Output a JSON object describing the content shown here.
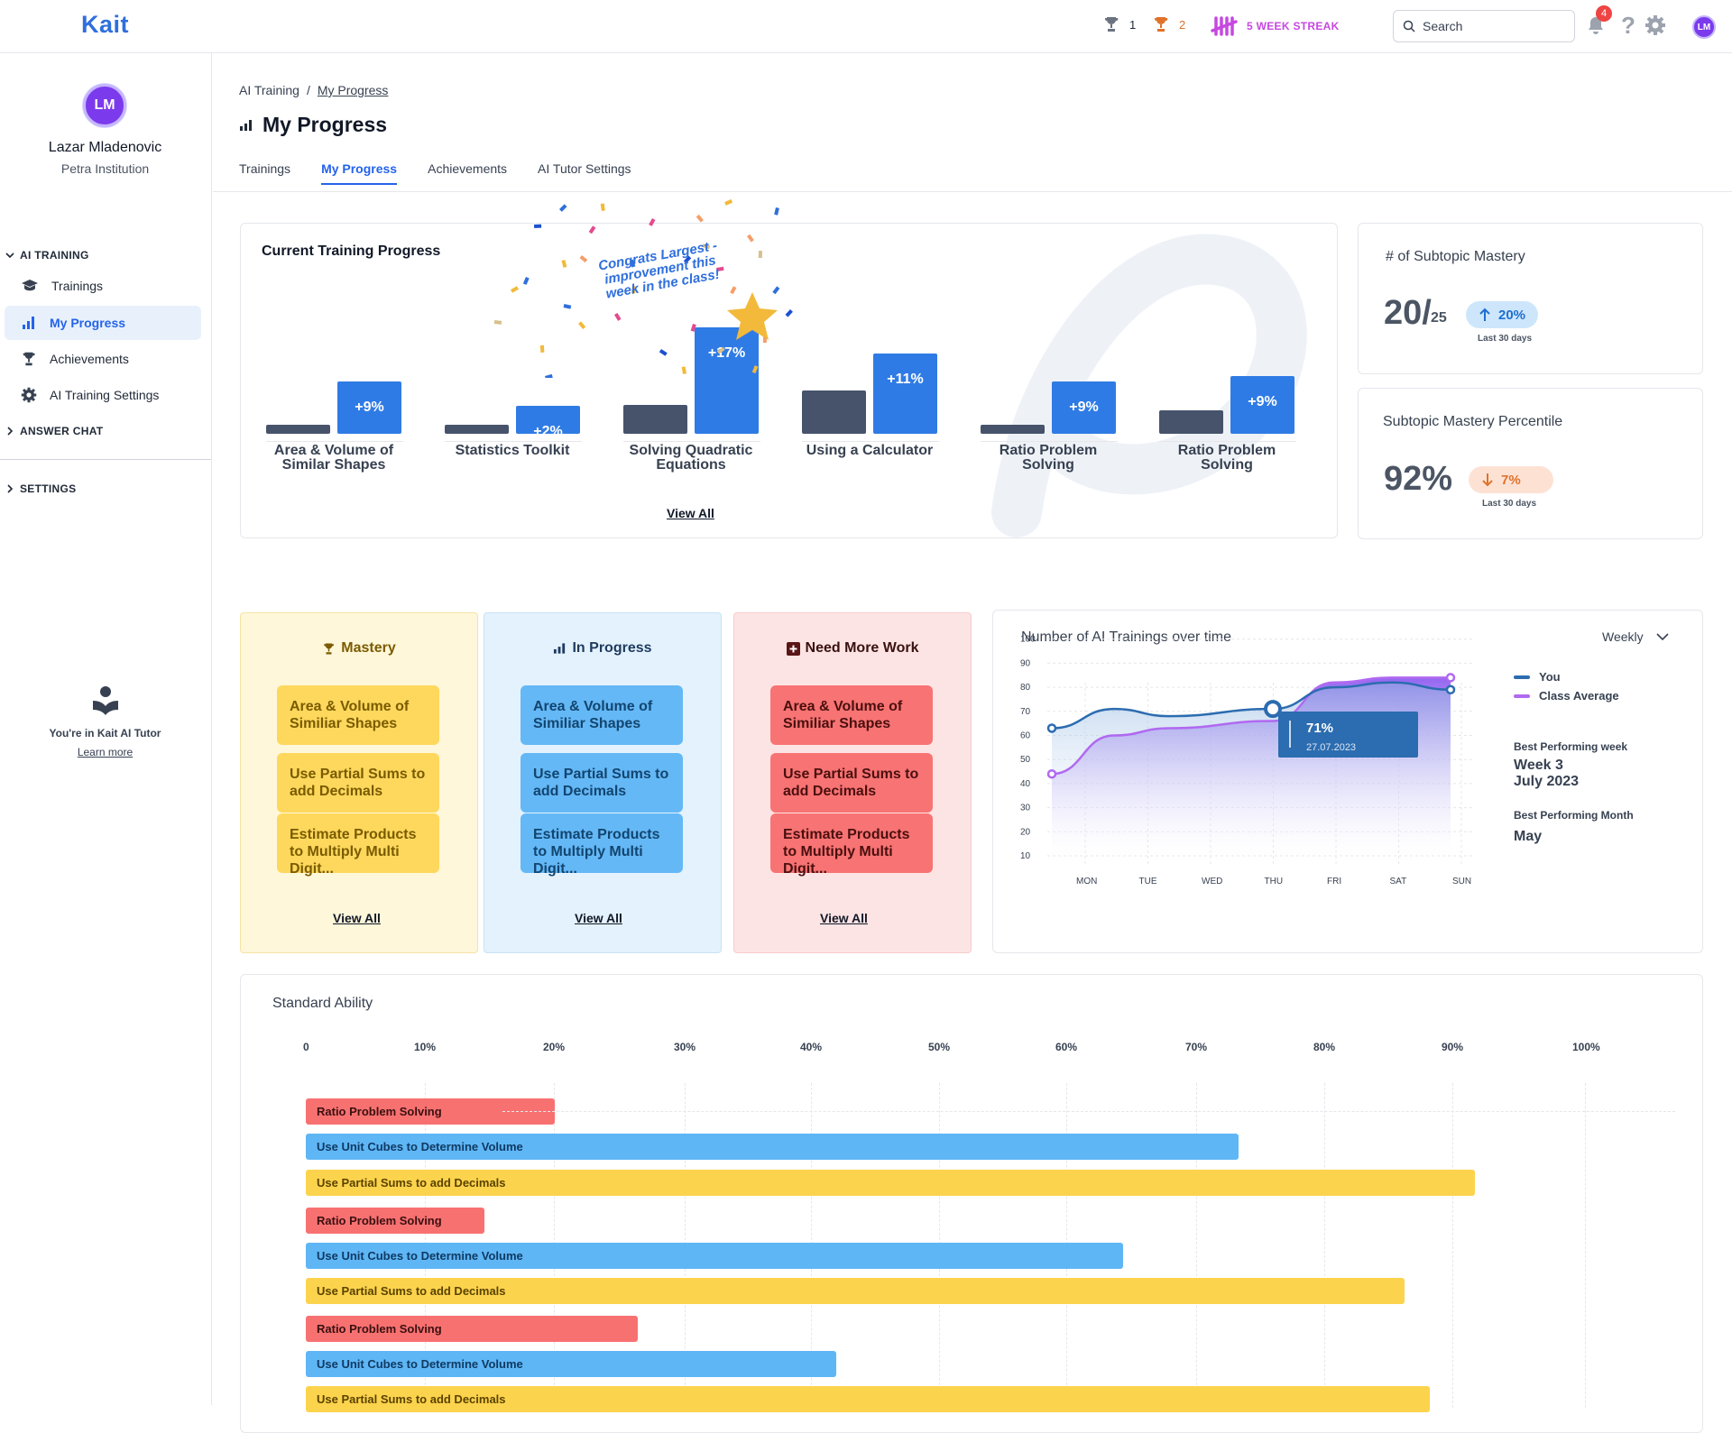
{
  "topbar": {
    "logo": "Kait",
    "trophy_silver_count": "1",
    "trophy_orange_count": "2",
    "streak_label": "5 WEEK STREAK",
    "search_placeholder": "Search",
    "notification_count": "4",
    "avatar_initials": "LM",
    "colors": {
      "brand": "#2f6fdc",
      "streak": "#c648e0",
      "orange": "#e0722b"
    }
  },
  "sidebar": {
    "avatar_initials": "LM",
    "user_name": "Lazar Mladenovic",
    "institution": "Petra Institution",
    "sections": {
      "ai_training": "AI TRAINING",
      "answer_chat": "ANSWER CHAT",
      "settings": "SETTINGS"
    },
    "items": [
      {
        "label": "Trainings",
        "icon": "graduation-cap-icon"
      },
      {
        "label": "My Progress",
        "icon": "bar-chart-icon"
      },
      {
        "label": "Achievements",
        "icon": "trophy-icon"
      },
      {
        "label": "AI Training Settings",
        "icon": "gear-icon"
      }
    ],
    "note_text": "You're in Kait AI Tutor",
    "note_link": "Learn more"
  },
  "header": {
    "breadcrumb": [
      "AI Training",
      "/",
      "My Progress"
    ],
    "title": "My Progress",
    "tabs": [
      "Trainings",
      "My Progress",
      "Achievements",
      "AI Tutor Settings"
    ]
  },
  "training_progress": {
    "title": "Current Training Progress",
    "congrats": "Congrats Largest - improvement this week in the class!",
    "view_all": "View All",
    "items": [
      {
        "label": "Area & Volume of Similar Shapes",
        "previous": 0.08,
        "gain": "+9%",
        "current": 0.48
      },
      {
        "label": "Statistics Toolkit",
        "previous": 0.08,
        "gain": "+2%",
        "current": 0.26
      },
      {
        "label": "Solving Quadratic Equations",
        "previous": 0.27,
        "gain": "+17%",
        "current": 0.98
      },
      {
        "label": "Using a Calculator",
        "previous": 0.4,
        "gain": "+11%",
        "current": 0.74
      },
      {
        "label": "Ratio Problem Solving",
        "previous": 0.08,
        "gain": "+9%",
        "current": 0.48
      },
      {
        "label": "Ratio Problem Solving",
        "previous": 0.22,
        "gain": "+9%",
        "current": 0.53
      }
    ]
  },
  "subtopic_mastery": {
    "title": "# of Subtopic Mastery",
    "value": "20/",
    "total": "25",
    "change": "20%",
    "period": "Last 30 days"
  },
  "mastery_percentile": {
    "title": "Subtopic Mastery Percentile",
    "value": "92%",
    "change": "7%",
    "period": "Last 30 days"
  },
  "columns": [
    {
      "title": "Mastery",
      "icon": "trophy-icon",
      "items": [
        "Area & Volume of Similiar Shapes",
        "Use Partial Sums to add Decimals",
        "Estimate Products to Multiply Multi Digit..."
      ],
      "view_all": "View All"
    },
    {
      "title": "In Progress",
      "icon": "bar-chart-icon",
      "items": [
        "Area & Volume of Similiar Shapes",
        "Use Partial Sums to add Decimals",
        "Estimate Products to Multiply Multi Digit..."
      ],
      "view_all": "View All"
    },
    {
      "title": "Need More Work",
      "icon": "plus-square-icon",
      "items": [
        "Area & Volume of Similiar Shapes",
        "Use Partial Sums to add Decimals",
        "Estimate Products to Multiply Multi Digit..."
      ],
      "view_all": "View All"
    }
  ],
  "trainings_chart": {
    "title": "Number of AI Trainings over time",
    "period": "Weekly",
    "tooltip_value": "71%",
    "tooltip_date": "27.07.2023",
    "best_week_label": "Best Performing week",
    "best_week_value": "Week 3",
    "best_week_value2": "July 2023",
    "best_month_label": "Best Performing Month",
    "best_month_value": "May"
  },
  "chart_data": [
    {
      "type": "area",
      "title": "Number of AI Trainings over time",
      "categories": [
        "MON",
        "TUE",
        "WED",
        "THU",
        "FRI",
        "SAT",
        "SUN"
      ],
      "ylim": [
        10,
        100
      ],
      "yticks": [
        10,
        20,
        30,
        40,
        50,
        60,
        70,
        80,
        90,
        100
      ],
      "series": [
        {
          "name": "You",
          "color": "#2c6cb0",
          "values": [
            63,
            71,
            68,
            71,
            80,
            82,
            79
          ]
        },
        {
          "name": "Class Average",
          "color": "#b069f0",
          "values": [
            44,
            60,
            63,
            66,
            82,
            84,
            84
          ]
        }
      ]
    },
    {
      "type": "bar",
      "orientation": "horizontal",
      "title": "Standard Ability",
      "xlim": [
        0,
        100
      ],
      "xticks": [
        "0",
        "10%",
        "20%",
        "30%",
        "40%",
        "50%",
        "60%",
        "70%",
        "80%",
        "90%",
        "100%"
      ],
      "categories": [
        "Ratio Problem Solving",
        "Use Unit Cubes to Determine Volume",
        "Use Partial Sums to add Decimals",
        "Ratio Problem Solving",
        "Use Unit Cubes to Determine Volume",
        "Use Partial Sums to add Decimals",
        "Ratio Problem Solving",
        "Use Unit Cubes to Determine Volume",
        "Use Partial Sums to add Decimals"
      ],
      "values": [
        19.5,
        73,
        91.5,
        14,
        64,
        86,
        26,
        41.5,
        88
      ],
      "colors": [
        "#f87171",
        "#5fb6f5",
        "#fcd34d",
        "#f87171",
        "#5fb6f5",
        "#fcd34d",
        "#f87171",
        "#5fb6f5",
        "#fcd34d"
      ]
    }
  ]
}
